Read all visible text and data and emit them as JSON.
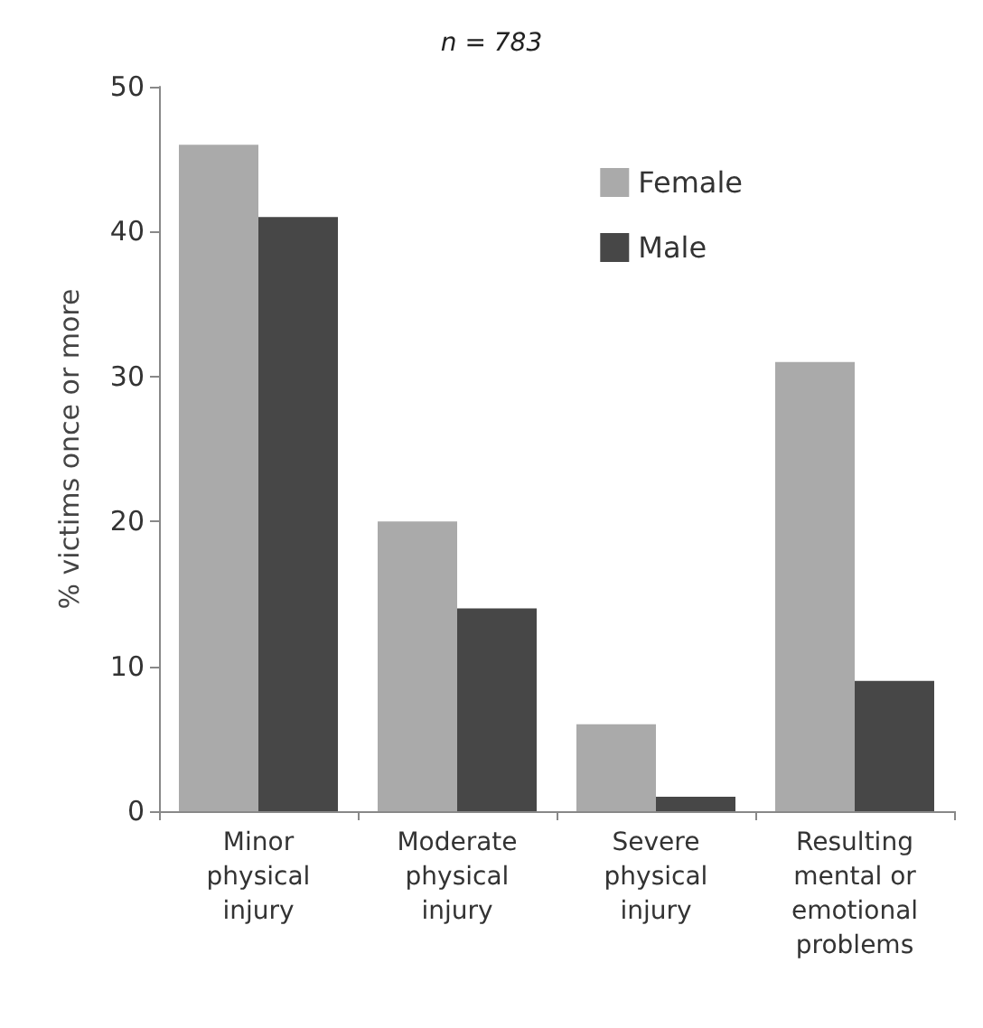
{
  "chart_data": {
    "type": "bar",
    "title": "n = 783",
    "ylabel": "% victims once or more",
    "categories": [
      "Minor\nphysical\ninjury",
      "Moderate\nphysical\ninjury",
      "Severe\nphysical\ninjury",
      "Resulting\nmental or\nemotional\nproblems"
    ],
    "series": [
      {
        "name": "Female",
        "color": "#aaaaaa",
        "values": [
          46,
          20,
          6,
          31
        ]
      },
      {
        "name": "Male",
        "color": "#474747",
        "values": [
          41,
          14,
          1,
          9
        ]
      }
    ],
    "ylim": [
      0,
      50
    ],
    "yticks": [
      0,
      10,
      20,
      30,
      40,
      50
    ],
    "grid": false,
    "legend": "top right"
  }
}
